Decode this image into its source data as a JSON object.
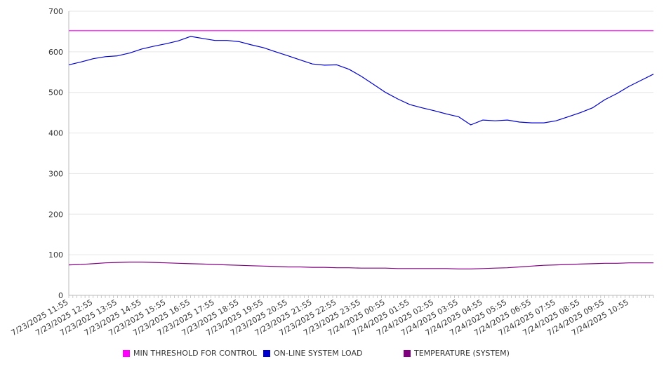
{
  "chart_data": {
    "type": "line",
    "title": "",
    "xlabel": "",
    "ylabel": "",
    "ylim": [
      0,
      700
    ],
    "y_ticks": [
      0,
      100,
      200,
      300,
      400,
      500,
      600,
      700
    ],
    "x_tick_labels": [
      "7/23/2025 11:55",
      "7/23/2025 12:55",
      "7/23/2025 13:55",
      "7/23/2025 14:55",
      "7/23/2025 15:55",
      "7/23/2025 16:55",
      "7/23/2025 17:55",
      "7/23/2025 18:55",
      "7/23/2025 19:55",
      "7/23/2025 20:55",
      "7/23/2025 21:55",
      "7/23/2025 22:55",
      "7/23/2025 23:55",
      "7/24/2025 00:55",
      "7/24/2025 01:55",
      "7/24/2025 02:55",
      "7/24/2025 03:55",
      "7/24/2025 04:55",
      "7/24/2025 05:55",
      "7/24/2025 06:55",
      "7/24/2025 07:55",
      "7/24/2025 08:55",
      "7/24/2025 09:55",
      "7/24/2025 10:55"
    ],
    "x_range": [
      "7/23/2025 11:55",
      "7/24/2025 11:55"
    ],
    "x_step_minutes": 30,
    "grid": true,
    "legend_position": "bottom",
    "series": [
      {
        "name": "MIN THRESHOLD FOR CONTROL",
        "color": "#ff00ff",
        "values": [
          652,
          652,
          652,
          652,
          652,
          652,
          652,
          652,
          652,
          652,
          652,
          652,
          652,
          652,
          652,
          652,
          652,
          652,
          652,
          652,
          652,
          652,
          652,
          652,
          652,
          652,
          652,
          652,
          652,
          652,
          652,
          652,
          652,
          652,
          652,
          652,
          652,
          652,
          652,
          652,
          652,
          652,
          652,
          652,
          652,
          652,
          652,
          652,
          652
        ]
      },
      {
        "name": "ON-LINE SYSTEM LOAD",
        "color": "#0000cc",
        "values": [
          568,
          575,
          583,
          588,
          590,
          597,
          607,
          614,
          620,
          627,
          638,
          633,
          628,
          628,
          625,
          617,
          610,
          600,
          590,
          580,
          570,
          567,
          568,
          557,
          540,
          520,
          500,
          484,
          470,
          462,
          455,
          447,
          440,
          420,
          432,
          430,
          432,
          427,
          425,
          425,
          430,
          440,
          450,
          462,
          482,
          497,
          515,
          530,
          545
        ]
      },
      {
        "name": "TEMPERATURE (SYSTEM)",
        "color": "#800080",
        "values": [
          75,
          76,
          78,
          80,
          81,
          82,
          82,
          81,
          80,
          79,
          78,
          77,
          76,
          75,
          74,
          73,
          72,
          71,
          70,
          70,
          69,
          69,
          68,
          68,
          67,
          67,
          67,
          66,
          66,
          66,
          66,
          66,
          65,
          65,
          66,
          67,
          68,
          70,
          72,
          74,
          75,
          76,
          77,
          78,
          79,
          79,
          80,
          80,
          80
        ]
      }
    ],
    "series_tail_note": ""
  }
}
